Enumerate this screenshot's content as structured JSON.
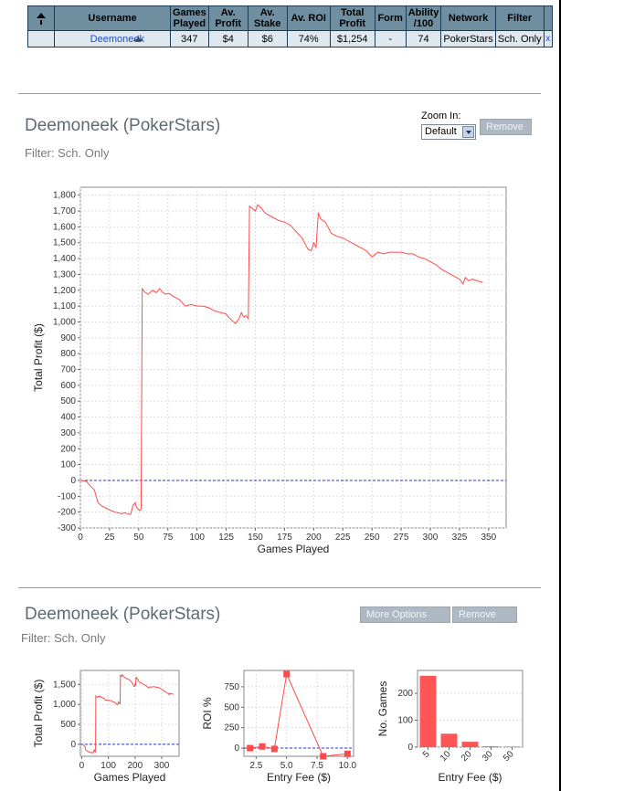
{
  "table": {
    "sort_icon": "arrow-up-icon",
    "headers": [
      [
        "",
        ""
      ],
      [
        "Username",
        ""
      ],
      [
        "Games",
        "Played"
      ],
      [
        "Av.",
        "Profit"
      ],
      [
        "Av.",
        "Stake"
      ],
      [
        "Av. ROI",
        ""
      ],
      [
        "Total",
        "Profit"
      ],
      [
        "Form",
        ""
      ],
      [
        "Ability",
        "/100"
      ],
      [
        "Network",
        ""
      ],
      [
        "Filter",
        ""
      ],
      [
        "",
        ""
      ]
    ],
    "row": {
      "username": "Deemoneek",
      "user_icon": "shark-icon",
      "games_played": "347",
      "av_profit": "$4",
      "av_stake": "$6",
      "av_roi": "74%",
      "total_profit": "$1,254",
      "form": "-",
      "ability": "74",
      "network": "PokerStars",
      "filter": "Sch. Only",
      "remove": "x"
    }
  },
  "panel1": {
    "title": "Deemoneek (PokerStars)",
    "filter": "Filter: Sch. Only",
    "zoom_label": "Zoom In:",
    "zoom_value": "Default",
    "remove_button": "Remove"
  },
  "panel2": {
    "title": "Deemoneek (PokerStars)",
    "filter": "Filter: Sch. Only",
    "more_options_button": "More Options",
    "remove_button": "Remove"
  },
  "colors": {
    "line": "#ff4b4b",
    "zero_line": "#3333cc",
    "bar": "#ff5555",
    "header_bg": "#6f8fa0",
    "row_bg": "#dfe7ef"
  },
  "chart_data": [
    {
      "type": "line",
      "xlabel": "Games Played",
      "ylabel": "Total Profit ($)",
      "xlim": [
        0,
        365
      ],
      "ylim": [
        -300,
        1850
      ],
      "xticks": [
        0,
        25,
        50,
        75,
        100,
        125,
        150,
        175,
        200,
        225,
        250,
        275,
        300,
        325,
        350
      ],
      "yticks": [
        -300,
        -200,
        -100,
        0,
        100,
        200,
        300,
        400,
        500,
        600,
        700,
        800,
        900,
        1000,
        1100,
        1200,
        1300,
        1400,
        1500,
        1600,
        1700,
        1800
      ],
      "grid": true,
      "zero_line": true,
      "series": [
        {
          "x": [
            0,
            5,
            8,
            12,
            15,
            18,
            22,
            26,
            30,
            35,
            38,
            43,
            45,
            47,
            48,
            50,
            51,
            52,
            53,
            55,
            58,
            62,
            65,
            68,
            70,
            73,
            76,
            80,
            85,
            90,
            95,
            100,
            105,
            110,
            115,
            120,
            125,
            127,
            130,
            133,
            136,
            138,
            140,
            142,
            144,
            145,
            147,
            150,
            152,
            155,
            158,
            160,
            165,
            170,
            175,
            180,
            185,
            190,
            195,
            198,
            200,
            202,
            204,
            206,
            210,
            215,
            220,
            225,
            230,
            235,
            240,
            245,
            250,
            255,
            260,
            265,
            270,
            275,
            280,
            285,
            290,
            295,
            300,
            305,
            310,
            315,
            320,
            325,
            328,
            330,
            333,
            336,
            340,
            345
          ],
          "y": [
            0,
            -5,
            -30,
            -60,
            -140,
            -160,
            -175,
            -190,
            -200,
            -210,
            -205,
            -215,
            -160,
            -140,
            -170,
            -185,
            -190,
            -180,
            1210,
            1190,
            1175,
            1200,
            1185,
            1210,
            1190,
            1175,
            1180,
            1160,
            1140,
            1100,
            1110,
            1100,
            1100,
            1090,
            1070,
            1060,
            1050,
            1030,
            1010,
            990,
            1020,
            1060,
            1030,
            1040,
            1020,
            1730,
            1720,
            1700,
            1740,
            1720,
            1690,
            1680,
            1660,
            1640,
            1630,
            1610,
            1570,
            1530,
            1460,
            1450,
            1500,
            1470,
            1690,
            1650,
            1630,
            1560,
            1540,
            1530,
            1510,
            1490,
            1470,
            1450,
            1410,
            1440,
            1430,
            1440,
            1440,
            1440,
            1430,
            1430,
            1410,
            1400,
            1380,
            1360,
            1330,
            1310,
            1290,
            1270,
            1240,
            1280,
            1260,
            1270,
            1260,
            1250
          ]
        }
      ]
    },
    {
      "type": "line",
      "xlabel": "Games Played",
      "ylabel": "Total Profit ($)",
      "xlim": [
        -5,
        365
      ],
      "ylim": [
        -300,
        1850
      ],
      "xticks": [
        0,
        100,
        200,
        300
      ],
      "yticks": [
        0,
        500,
        1000,
        1500
      ],
      "grid": true,
      "zero_line": true,
      "series": [
        {
          "ref": "same-as-main"
        }
      ]
    },
    {
      "type": "line",
      "xlabel": "Entry Fee ($)",
      "ylabel": "ROI %",
      "xlim": [
        1.5,
        10.5
      ],
      "ylim": [
        -100,
        950
      ],
      "xticks": [
        2.5,
        5.0,
        7.5,
        10.0
      ],
      "xtick_labels": [
        "2.5",
        "5.0",
        "7.5",
        "10.0"
      ],
      "yticks": [
        0,
        250,
        500,
        750
      ],
      "grid": true,
      "zero_line": true,
      "series": [
        {
          "x": [
            2,
            3,
            4,
            5,
            8,
            10
          ],
          "y": [
            0,
            20,
            -10,
            905,
            -100,
            -70
          ]
        }
      ]
    },
    {
      "type": "bar",
      "xlabel": "Entry Fee ($)",
      "ylabel": "No. Games",
      "categories": [
        "5",
        "10",
        "20",
        "30",
        "50"
      ],
      "values": [
        265,
        50,
        20,
        3,
        2
      ],
      "ylim": [
        0,
        285
      ],
      "yticks": [
        0,
        100,
        200
      ],
      "grid": true
    }
  ]
}
